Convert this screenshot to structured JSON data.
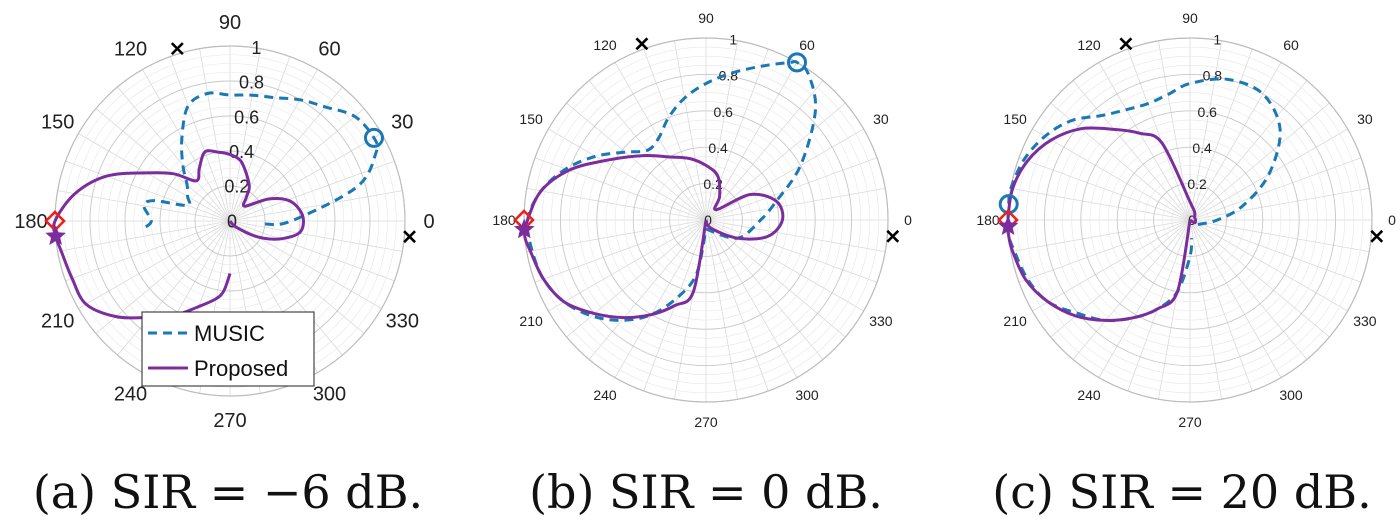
{
  "chart_data": [
    {
      "type": "polar",
      "caption": "(a) SIR = −6 dB.",
      "theta_ticks": [
        "0",
        "30",
        "60",
        "90",
        "120",
        "150",
        "180",
        "210",
        "240",
        "270",
        "300",
        "330"
      ],
      "r_ticks": [
        "0",
        "0.2",
        "0.4",
        "0.6",
        "0.8",
        "1"
      ],
      "rlim": [
        0,
        1
      ],
      "grid": true,
      "legend": {
        "placement": "bottom",
        "entries": [
          "MUSIC",
          "Proposed"
        ]
      },
      "series": [
        {
          "name": "MUSIC",
          "style": "dashed",
          "color": "#1a78b4",
          "theta": [
            -5,
            0,
            15,
            25,
            30,
            40,
            50,
            60,
            70,
            80,
            90,
            100,
            110,
            120,
            130,
            140,
            150,
            160,
            165,
            170,
            180,
            185
          ],
          "r": [
            0.2,
            0.35,
            0.75,
            0.92,
            0.95,
            0.93,
            0.85,
            0.8,
            0.75,
            0.73,
            0.72,
            0.74,
            0.7,
            0.55,
            0.42,
            0.32,
            0.28,
            0.26,
            0.45,
            0.5,
            0.45,
            0.5
          ]
        },
        {
          "name": "Proposed",
          "style": "solid",
          "color": "#7b2d9e",
          "theta": [
            -60,
            -45,
            -30,
            -20,
            -10,
            0,
            10,
            20,
            30,
            45,
            55,
            60,
            70,
            80,
            90,
            100,
            110,
            120,
            130,
            140,
            150,
            160,
            170,
            180,
            185,
            190,
            200,
            210,
            220,
            230,
            240,
            250,
            260,
            265,
            270
          ],
          "r": [
            0.0,
            0.05,
            0.18,
            0.3,
            0.4,
            0.42,
            0.4,
            0.35,
            0.25,
            0.12,
            0.16,
            0.22,
            0.28,
            0.35,
            0.38,
            0.4,
            0.42,
            0.35,
            0.3,
            0.42,
            0.55,
            0.75,
            0.9,
            1.0,
            1.0,
            0.98,
            0.96,
            0.95,
            0.85,
            0.72,
            0.62,
            0.52,
            0.45,
            0.4,
            0.3
          ]
        }
      ],
      "markers": [
        {
          "symbol": "x",
          "theta": -5,
          "r": 1.03,
          "color": "#000000"
        },
        {
          "symbol": "x",
          "theta": 107,
          "r": 1.03,
          "color": "#000000"
        },
        {
          "symbol": "o",
          "theta": 30,
          "r": 0.95,
          "color": "#1a78b4"
        },
        {
          "symbol": "diamond",
          "theta": 180,
          "r": 1.0,
          "color": "#e8231f"
        },
        {
          "symbol": "star",
          "theta": 185,
          "r": 1.0,
          "color": "#7b2d9e"
        }
      ]
    },
    {
      "type": "polar",
      "caption": "(b) SIR = 0 dB.",
      "theta_ticks": [
        "0",
        "30",
        "60",
        "90",
        "120",
        "150",
        "180",
        "210",
        "240",
        "270",
        "300",
        "330"
      ],
      "r_ticks": [
        "0",
        "0.2",
        "0.4",
        "0.6",
        "0.8",
        "1"
      ],
      "rlim": [
        0,
        1
      ],
      "grid": true,
      "series": [
        {
          "name": "MUSIC",
          "style": "dashed",
          "color": "#1a78b4",
          "theta": [
            -90,
            -30,
            0,
            15,
            30,
            45,
            55,
            60,
            62,
            70,
            80,
            90,
            100,
            110,
            120,
            130,
            140,
            150,
            160,
            170,
            180,
            190,
            200,
            210,
            220,
            230,
            240,
            250,
            260,
            270
          ],
          "r": [
            0.05,
            0.2,
            0.3,
            0.4,
            0.6,
            0.85,
            0.98,
            1.0,
            0.98,
            0.9,
            0.82,
            0.75,
            0.68,
            0.6,
            0.52,
            0.5,
            0.58,
            0.7,
            0.82,
            0.92,
            0.98,
            0.97,
            0.95,
            0.9,
            0.82,
            0.72,
            0.6,
            0.45,
            0.3,
            0.05
          ]
        },
        {
          "name": "Proposed",
          "style": "solid",
          "color": "#7b2d9e",
          "theta": [
            -90,
            -60,
            -30,
            -15,
            0,
            15,
            30,
            45,
            60,
            75,
            90,
            105,
            120,
            135,
            150,
            160,
            170,
            180,
            185,
            190,
            200,
            210,
            220,
            230,
            240,
            250,
            260,
            270
          ],
          "r": [
            0.0,
            0.05,
            0.2,
            0.35,
            0.42,
            0.4,
            0.28,
            0.08,
            0.15,
            0.25,
            0.3,
            0.35,
            0.4,
            0.5,
            0.65,
            0.8,
            0.92,
            0.98,
            1.0,
            0.98,
            0.95,
            0.9,
            0.8,
            0.7,
            0.6,
            0.5,
            0.4,
            0.0
          ]
        }
      ],
      "markers": [
        {
          "symbol": "x",
          "theta": -5,
          "r": 1.03,
          "color": "#000000"
        },
        {
          "symbol": "x",
          "theta": 110,
          "r": 1.03,
          "color": "#000000"
        },
        {
          "symbol": "o",
          "theta": 60,
          "r": 1.0,
          "color": "#1a78b4"
        },
        {
          "symbol": "diamond",
          "theta": 180,
          "r": 1.0,
          "color": "#e8231f"
        },
        {
          "symbol": "star",
          "theta": 183,
          "r": 1.0,
          "color": "#7b2d9e"
        }
      ]
    },
    {
      "type": "polar",
      "caption": "(c) SIR = 20 dB.",
      "theta_ticks": [
        "0",
        "30",
        "60",
        "90",
        "120",
        "150",
        "180",
        "210",
        "240",
        "270",
        "300",
        "330"
      ],
      "r_ticks": [
        "0",
        "0.2",
        "0.4",
        "0.6",
        "0.8",
        "1"
      ],
      "rlim": [
        0,
        1
      ],
      "grid": true,
      "series": [
        {
          "name": "MUSIC",
          "style": "dashed",
          "color": "#1a78b4",
          "theta": [
            -30,
            0,
            15,
            30,
            45,
            60,
            75,
            90,
            100,
            110,
            120,
            130,
            140,
            150,
            160,
            170,
            175,
            180,
            185,
            190,
            200,
            210,
            220,
            230,
            240,
            250,
            260,
            270,
            275
          ],
          "r": [
            0.05,
            0.15,
            0.3,
            0.5,
            0.7,
            0.8,
            0.8,
            0.75,
            0.7,
            0.68,
            0.7,
            0.75,
            0.85,
            0.92,
            0.97,
            1.0,
            1.0,
            1.0,
            1.0,
            0.98,
            0.95,
            0.9,
            0.8,
            0.72,
            0.62,
            0.52,
            0.4,
            0.2,
            0.1
          ]
        },
        {
          "name": "Proposed",
          "style": "solid",
          "color": "#7b2d9e",
          "theta": [
            -90,
            -30,
            0,
            30,
            60,
            90,
            110,
            120,
            130,
            140,
            150,
            160,
            170,
            180,
            185,
            190,
            200,
            210,
            220,
            230,
            240,
            250,
            260,
            270
          ],
          "r": [
            0.0,
            0.03,
            0.03,
            0.03,
            0.05,
            0.1,
            0.45,
            0.55,
            0.65,
            0.78,
            0.88,
            0.95,
            0.99,
            1.0,
            1.0,
            0.99,
            0.96,
            0.9,
            0.82,
            0.72,
            0.62,
            0.52,
            0.4,
            0.0
          ]
        }
      ],
      "markers": [
        {
          "symbol": "x",
          "theta": -5,
          "r": 1.03,
          "color": "#000000"
        },
        {
          "symbol": "x",
          "theta": 110,
          "r": 1.03,
          "color": "#000000"
        },
        {
          "symbol": "o",
          "theta": 175,
          "r": 1.0,
          "color": "#1a78b4"
        },
        {
          "symbol": "diamond",
          "theta": 180,
          "r": 1.0,
          "color": "#e8231f"
        },
        {
          "symbol": "star",
          "theta": 182,
          "r": 1.0,
          "color": "#7b2d9e"
        }
      ]
    }
  ]
}
